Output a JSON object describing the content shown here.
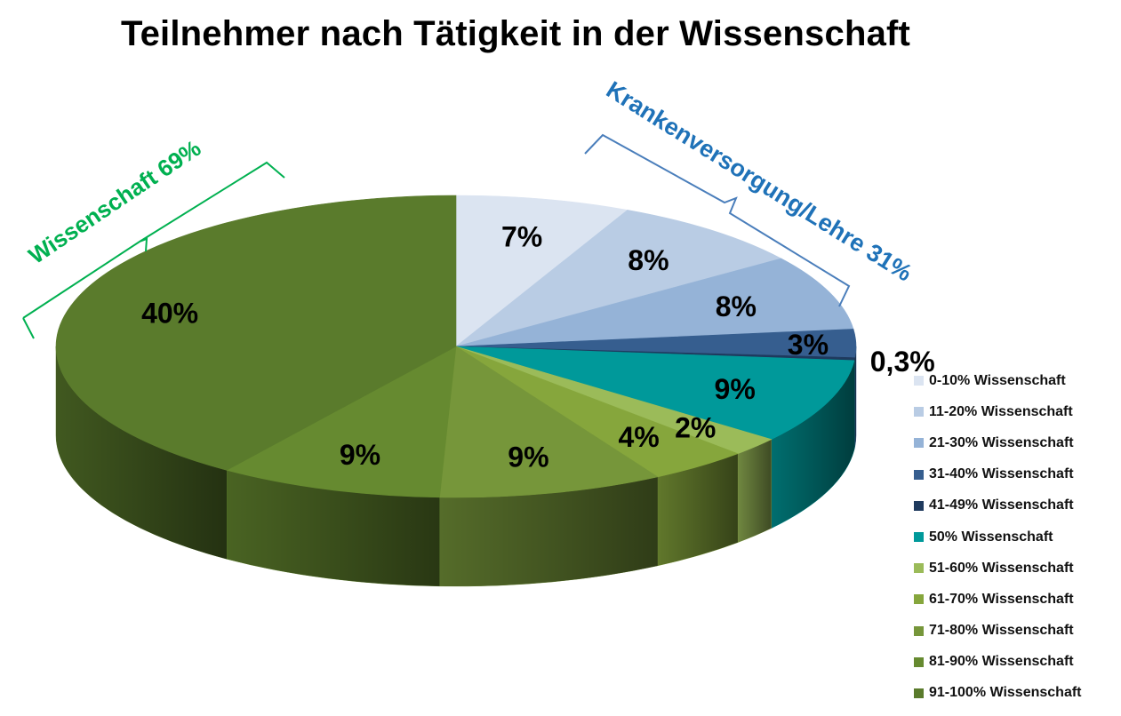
{
  "chart_data": {
    "type": "pie",
    "title": "Teilnehmer nach Tätigkeit in der Wissenschaft",
    "legend_position": "right",
    "slices": [
      {
        "name": "0-10% Wissenschaft",
        "value": 7,
        "label": "7%",
        "color": "#dbe4f1"
      },
      {
        "name": "11-20% Wissenschaft",
        "value": 8,
        "label": "8%",
        "color": "#b9cce4"
      },
      {
        "name": "21-30% Wissenschaft",
        "value": 8,
        "label": "8%",
        "color": "#95b3d7"
      },
      {
        "name": "31-40% Wissenschaft",
        "value": 3,
        "label": "3%",
        "color": "#365e8f"
      },
      {
        "name": "41-49% Wissenschaft",
        "value": 0.3,
        "label": "0,3%",
        "color": "#1f3a5e"
      },
      {
        "name": "50% Wissenschaft",
        "value": 9,
        "label": "9%",
        "color": "#00999a"
      },
      {
        "name": "51-60% Wissenschaft",
        "value": 2,
        "label": "2%",
        "color": "#9bbb59"
      },
      {
        "name": "61-70% Wissenschaft",
        "value": 4,
        "label": "4%",
        "color": "#86a63c"
      },
      {
        "name": "71-80% Wissenschaft",
        "value": 9,
        "label": "9%",
        "color": "#76963a"
      },
      {
        "name": "81-90% Wissenschaft",
        "value": 9,
        "label": "9%",
        "color": "#668a30"
      },
      {
        "name": "91-100% Wissenschaft",
        "value": 40,
        "label": "40%",
        "color": "#5a7b2c"
      }
    ],
    "groups": [
      {
        "label": "Wissenschaft 69%",
        "color": "#00b050"
      },
      {
        "label": "Krankenversorgung/Lehre 31%",
        "color": "#1f72b8"
      }
    ]
  }
}
